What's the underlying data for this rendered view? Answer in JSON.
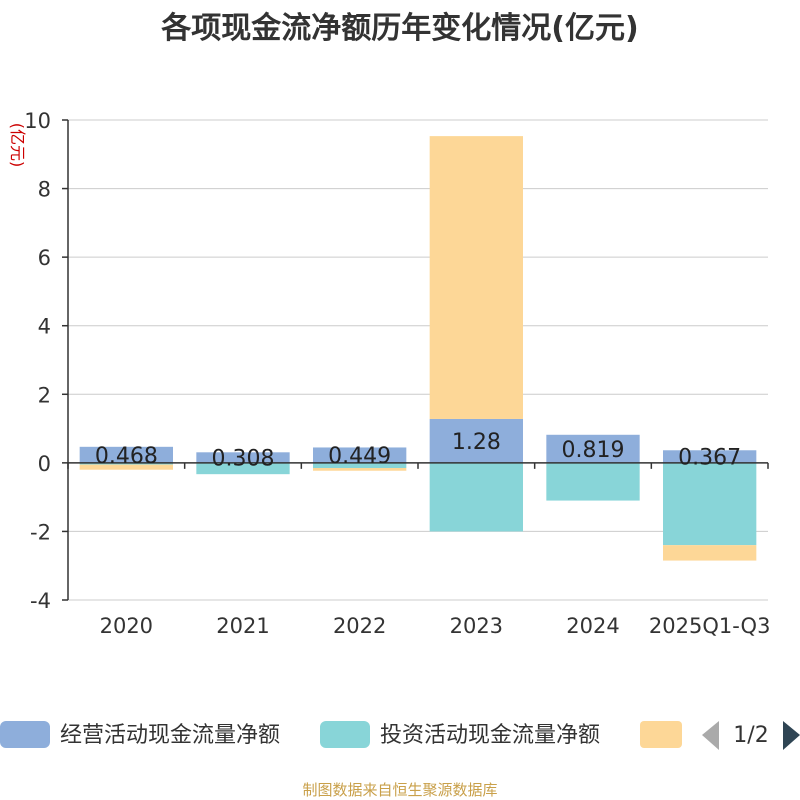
{
  "colors": {
    "operating": "#8eaedb",
    "investing": "#88d5d8",
    "financing": "#fdd797",
    "grid": "#cccccc",
    "axis": "#333333",
    "pager_active": "#2f4554",
    "pager_inactive": "#aaaaaa"
  },
  "chart_data": {
    "type": "bar",
    "stacked": true,
    "title": "各项现金流净额历年变化情况(亿元)",
    "ylabel": "(亿元)",
    "xlabel": "",
    "ylim": [
      -4,
      10
    ],
    "yticks": [
      10,
      8,
      6,
      4,
      2,
      0,
      -2,
      -4
    ],
    "grid": true,
    "legend_position": "bottom",
    "categories": [
      "2020",
      "2021",
      "2022",
      "2023",
      "2024",
      "2025Q1-Q3"
    ],
    "series": [
      {
        "name": "经营活动现金流量净额",
        "color_key": "operating",
        "values": [
          0.468,
          0.308,
          0.449,
          1.28,
          0.819,
          0.367
        ]
      },
      {
        "name": "投资活动现金流量净额",
        "color_key": "investing",
        "values": [
          -0.05,
          -0.33,
          -0.15,
          -2.0,
          -1.1,
          -2.4
        ]
      },
      {
        "name": "",
        "color_key": "financing",
        "values": [
          -0.15,
          0.0,
          -0.08,
          8.25,
          0.0,
          -0.45
        ]
      }
    ],
    "data_labels": [
      "0.468",
      "0.308",
      "0.449",
      "1.28",
      "0.819",
      "0.367"
    ]
  },
  "legend": {
    "items": [
      {
        "label": "经营活动现金流量净额",
        "color_key": "operating"
      },
      {
        "label": "投资活动现金流量净额",
        "color_key": "investing"
      },
      {
        "label": "",
        "color_key": "financing"
      }
    ],
    "page_indicator": "1/2"
  },
  "source": "制图数据来自恒生聚源数据库"
}
